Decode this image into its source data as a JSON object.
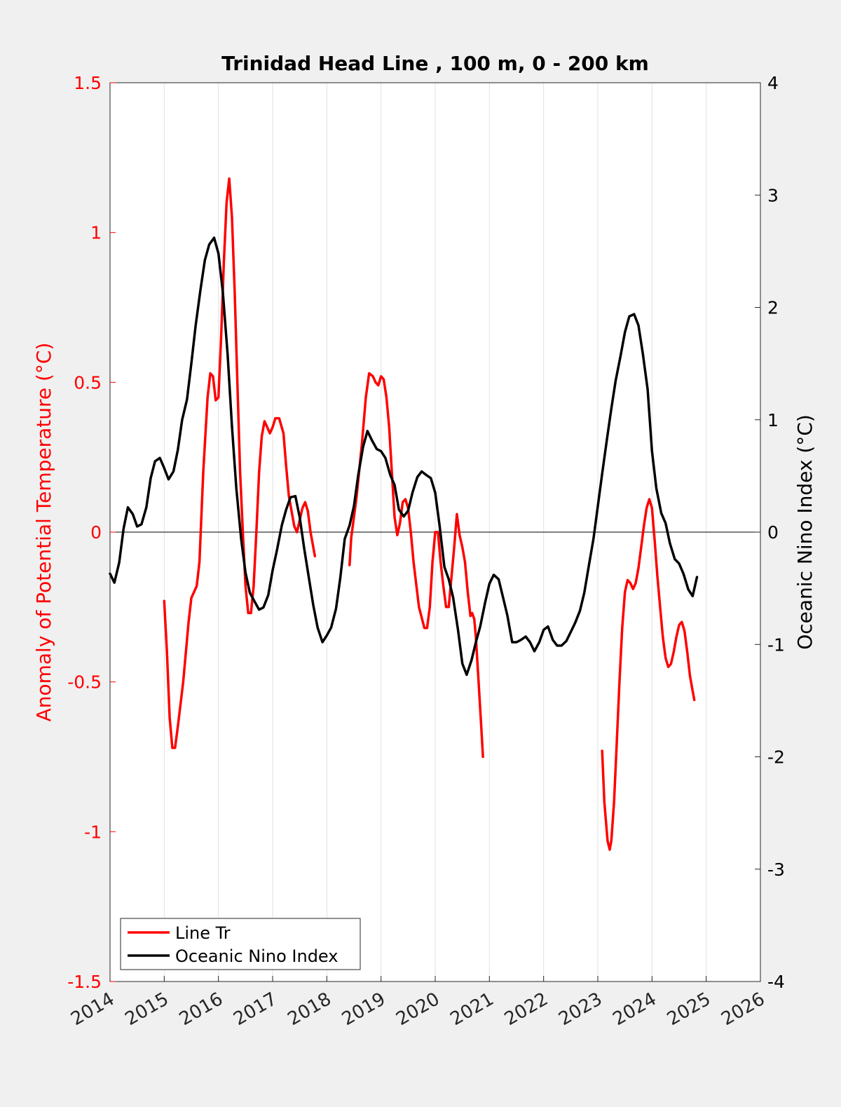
{
  "chart_data": {
    "type": "line",
    "title": "Trinidad Head Line , 100 m, 0 - 200 km",
    "xlabel": "",
    "ylabel_left": "Anomaly of Potential Temperature (°C)",
    "ylabel_right": "Oceanic Nino Index (°C)",
    "xlim": [
      2014,
      2026
    ],
    "ylim_left": [
      -1.5,
      1.5
    ],
    "ylim_right": [
      -4,
      4
    ],
    "x_ticks": [
      "2014",
      "2015",
      "2016",
      "2017",
      "2018",
      "2019",
      "2020",
      "2021",
      "2022",
      "2023",
      "2024",
      "2025",
      "2026"
    ],
    "y_left_ticks": [
      "-1.5",
      "-1",
      "-0.5",
      "0",
      "0.5",
      "1",
      "1.5"
    ],
    "y_right_ticks": [
      "-4",
      "-3",
      "-2",
      "-1",
      "0",
      "1",
      "2",
      "3",
      "4"
    ],
    "grid": "vertical",
    "legend_position": "bottom-left",
    "colors": {
      "line_tr": "#ff0000",
      "oni": "#000000",
      "left_axis": "#ff0000",
      "right_axis": "#000000"
    },
    "series": [
      {
        "name": "Line Tr",
        "axis": "left",
        "color": "#ff0000",
        "segments": [
          [
            [
              2015.0,
              -0.23
            ],
            [
              2015.05,
              -0.4
            ],
            [
              2015.1,
              -0.62
            ],
            [
              2015.15,
              -0.72
            ],
            [
              2015.2,
              -0.72
            ],
            [
              2015.25,
              -0.65
            ],
            [
              2015.35,
              -0.5
            ],
            [
              2015.45,
              -0.3
            ],
            [
              2015.5,
              -0.22
            ],
            [
              2015.6,
              -0.18
            ],
            [
              2015.65,
              -0.1
            ],
            [
              2015.72,
              0.2
            ],
            [
              2015.8,
              0.45
            ],
            [
              2015.85,
              0.53
            ],
            [
              2015.9,
              0.52
            ],
            [
              2015.95,
              0.44
            ],
            [
              2016.0,
              0.45
            ],
            [
              2016.05,
              0.65
            ],
            [
              2016.1,
              0.9
            ],
            [
              2016.15,
              1.1
            ],
            [
              2016.2,
              1.18
            ],
            [
              2016.25,
              1.05
            ],
            [
              2016.3,
              0.8
            ],
            [
              2016.35,
              0.5
            ],
            [
              2016.4,
              0.2
            ],
            [
              2016.45,
              0.0
            ],
            [
              2016.5,
              -0.18
            ],
            [
              2016.55,
              -0.27
            ],
            [
              2016.6,
              -0.27
            ],
            [
              2016.65,
              -0.18
            ],
            [
              2016.7,
              0.0
            ],
            [
              2016.75,
              0.2
            ],
            [
              2016.8,
              0.32
            ],
            [
              2016.85,
              0.37
            ],
            [
              2016.9,
              0.35
            ],
            [
              2016.95,
              0.33
            ],
            [
              2017.0,
              0.35
            ],
            [
              2017.05,
              0.38
            ],
            [
              2017.12,
              0.38
            ],
            [
              2017.2,
              0.33
            ],
            [
              2017.25,
              0.22
            ],
            [
              2017.3,
              0.12
            ],
            [
              2017.4,
              0.02
            ],
            [
              2017.45,
              0.0
            ],
            [
              2017.55,
              0.08
            ],
            [
              2017.6,
              0.1
            ],
            [
              2017.65,
              0.07
            ],
            [
              2017.7,
              0.0
            ],
            [
              2017.78,
              -0.08
            ]
          ],
          [
            [
              2018.42,
              -0.11
            ],
            [
              2018.45,
              -0.02
            ],
            [
              2018.55,
              0.12
            ],
            [
              2018.65,
              0.3
            ],
            [
              2018.72,
              0.45
            ],
            [
              2018.78,
              0.53
            ],
            [
              2018.85,
              0.52
            ],
            [
              2018.9,
              0.5
            ],
            [
              2018.95,
              0.49
            ],
            [
              2019.0,
              0.52
            ],
            [
              2019.05,
              0.51
            ],
            [
              2019.1,
              0.45
            ],
            [
              2019.15,
              0.35
            ],
            [
              2019.2,
              0.2
            ],
            [
              2019.25,
              0.05
            ],
            [
              2019.3,
              -0.01
            ],
            [
              2019.35,
              0.03
            ],
            [
              2019.4,
              0.1
            ],
            [
              2019.45,
              0.11
            ],
            [
              2019.5,
              0.08
            ],
            [
              2019.55,
              0.0
            ],
            [
              2019.6,
              -0.1
            ],
            [
              2019.7,
              -0.25
            ],
            [
              2019.8,
              -0.32
            ],
            [
              2019.85,
              -0.32
            ],
            [
              2019.9,
              -0.25
            ],
            [
              2019.95,
              -0.1
            ],
            [
              2020.0,
              0.0
            ],
            [
              2020.05,
              0.0
            ],
            [
              2020.1,
              -0.1
            ],
            [
              2020.15,
              -0.18
            ],
            [
              2020.2,
              -0.25
            ],
            [
              2020.25,
              -0.25
            ],
            [
              2020.3,
              -0.15
            ],
            [
              2020.35,
              -0.05
            ],
            [
              2020.4,
              0.06
            ],
            [
              2020.45,
              -0.01
            ],
            [
              2020.5,
              -0.05
            ],
            [
              2020.55,
              -0.1
            ],
            [
              2020.6,
              -0.2
            ],
            [
              2020.65,
              -0.28
            ],
            [
              2020.68,
              -0.27
            ],
            [
              2020.72,
              -0.29
            ],
            [
              2020.75,
              -0.35
            ],
            [
              2020.8,
              -0.5
            ],
            [
              2020.85,
              -0.65
            ],
            [
              2020.88,
              -0.75
            ]
          ],
          [
            [
              2023.08,
              -0.73
            ],
            [
              2023.12,
              -0.9
            ],
            [
              2023.18,
              -1.03
            ],
            [
              2023.22,
              -1.06
            ],
            [
              2023.25,
              -1.03
            ],
            [
              2023.3,
              -0.9
            ],
            [
              2023.35,
              -0.7
            ],
            [
              2023.4,
              -0.5
            ],
            [
              2023.45,
              -0.32
            ],
            [
              2023.5,
              -0.2
            ],
            [
              2023.55,
              -0.16
            ],
            [
              2023.6,
              -0.17
            ],
            [
              2023.65,
              -0.19
            ],
            [
              2023.7,
              -0.17
            ],
            [
              2023.75,
              -0.12
            ],
            [
              2023.8,
              -0.05
            ],
            [
              2023.85,
              0.02
            ],
            [
              2023.9,
              0.08
            ],
            [
              2023.95,
              0.11
            ],
            [
              2024.0,
              0.08
            ],
            [
              2024.05,
              -0.03
            ],
            [
              2024.1,
              -0.15
            ],
            [
              2024.15,
              -0.25
            ],
            [
              2024.2,
              -0.35
            ],
            [
              2024.25,
              -0.42
            ],
            [
              2024.3,
              -0.45
            ],
            [
              2024.35,
              -0.44
            ],
            [
              2024.4,
              -0.4
            ],
            [
              2024.45,
              -0.35
            ],
            [
              2024.5,
              -0.31
            ],
            [
              2024.55,
              -0.3
            ],
            [
              2024.6,
              -0.33
            ],
            [
              2024.65,
              -0.4
            ],
            [
              2024.7,
              -0.48
            ],
            [
              2024.75,
              -0.53
            ],
            [
              2024.78,
              -0.56
            ]
          ]
        ]
      },
      {
        "name": "Oceanic Nino Index",
        "axis": "right",
        "color": "#000000",
        "points": [
          [
            2014.0,
            -0.37
          ],
          [
            2014.08,
            -0.45
          ],
          [
            2014.17,
            -0.27
          ],
          [
            2014.25,
            0.03
          ],
          [
            2014.33,
            0.22
          ],
          [
            2014.42,
            0.16
          ],
          [
            2014.5,
            0.05
          ],
          [
            2014.58,
            0.07
          ],
          [
            2014.67,
            0.22
          ],
          [
            2014.75,
            0.48
          ],
          [
            2014.83,
            0.63
          ],
          [
            2014.92,
            0.66
          ],
          [
            2015.0,
            0.57
          ],
          [
            2015.08,
            0.47
          ],
          [
            2015.17,
            0.54
          ],
          [
            2015.25,
            0.73
          ],
          [
            2015.33,
            1.0
          ],
          [
            2015.42,
            1.18
          ],
          [
            2015.5,
            1.5
          ],
          [
            2015.58,
            1.84
          ],
          [
            2015.67,
            2.16
          ],
          [
            2015.75,
            2.42
          ],
          [
            2015.83,
            2.56
          ],
          [
            2015.92,
            2.62
          ],
          [
            2016.0,
            2.48
          ],
          [
            2016.08,
            2.14
          ],
          [
            2016.17,
            1.58
          ],
          [
            2016.25,
            0.94
          ],
          [
            2016.33,
            0.39
          ],
          [
            2016.42,
            -0.06
          ],
          [
            2016.5,
            -0.36
          ],
          [
            2016.58,
            -0.54
          ],
          [
            2016.67,
            -0.62
          ],
          [
            2016.75,
            -0.69
          ],
          [
            2016.83,
            -0.67
          ],
          [
            2016.92,
            -0.56
          ],
          [
            2017.0,
            -0.34
          ],
          [
            2017.08,
            -0.16
          ],
          [
            2017.17,
            0.06
          ],
          [
            2017.25,
            0.2
          ],
          [
            2017.33,
            0.31
          ],
          [
            2017.42,
            0.32
          ],
          [
            2017.5,
            0.13
          ],
          [
            2017.58,
            -0.14
          ],
          [
            2017.67,
            -0.41
          ],
          [
            2017.75,
            -0.65
          ],
          [
            2017.83,
            -0.85
          ],
          [
            2017.92,
            -0.98
          ],
          [
            2018.0,
            -0.92
          ],
          [
            2018.08,
            -0.85
          ],
          [
            2018.17,
            -0.68
          ],
          [
            2018.25,
            -0.4
          ],
          [
            2018.33,
            -0.06
          ],
          [
            2018.42,
            0.06
          ],
          [
            2018.5,
            0.23
          ],
          [
            2018.58,
            0.51
          ],
          [
            2018.67,
            0.76
          ],
          [
            2018.75,
            0.9
          ],
          [
            2018.83,
            0.82
          ],
          [
            2018.92,
            0.74
          ],
          [
            2019.0,
            0.72
          ],
          [
            2019.08,
            0.66
          ],
          [
            2019.17,
            0.51
          ],
          [
            2019.25,
            0.42
          ],
          [
            2019.33,
            0.2
          ],
          [
            2019.42,
            0.14
          ],
          [
            2019.5,
            0.19
          ],
          [
            2019.58,
            0.35
          ],
          [
            2019.67,
            0.49
          ],
          [
            2019.75,
            0.54
          ],
          [
            2019.83,
            0.51
          ],
          [
            2019.92,
            0.48
          ],
          [
            2020.0,
            0.35
          ],
          [
            2020.08,
            0.06
          ],
          [
            2020.17,
            -0.31
          ],
          [
            2020.25,
            -0.42
          ],
          [
            2020.33,
            -0.58
          ],
          [
            2020.42,
            -0.87
          ],
          [
            2020.5,
            -1.17
          ],
          [
            2020.58,
            -1.27
          ],
          [
            2020.67,
            -1.14
          ],
          [
            2020.75,
            -0.98
          ],
          [
            2020.83,
            -0.84
          ],
          [
            2020.92,
            -0.63
          ],
          [
            2021.0,
            -0.46
          ],
          [
            2021.08,
            -0.38
          ],
          [
            2021.17,
            -0.42
          ],
          [
            2021.25,
            -0.58
          ],
          [
            2021.33,
            -0.74
          ],
          [
            2021.42,
            -0.98
          ],
          [
            2021.5,
            -0.98
          ],
          [
            2021.58,
            -0.96
          ],
          [
            2021.67,
            -0.93
          ],
          [
            2021.75,
            -0.98
          ],
          [
            2021.83,
            -1.06
          ],
          [
            2021.92,
            -0.98
          ],
          [
            2022.0,
            -0.87
          ],
          [
            2022.08,
            -0.84
          ],
          [
            2022.17,
            -0.96
          ],
          [
            2022.25,
            -1.01
          ],
          [
            2022.33,
            -1.01
          ],
          [
            2022.42,
            -0.97
          ],
          [
            2022.5,
            -0.89
          ],
          [
            2022.58,
            -0.81
          ],
          [
            2022.67,
            -0.7
          ],
          [
            2022.75,
            -0.54
          ],
          [
            2022.83,
            -0.31
          ],
          [
            2022.92,
            -0.06
          ],
          [
            2023.0,
            0.23
          ],
          [
            2023.08,
            0.52
          ],
          [
            2023.17,
            0.83
          ],
          [
            2023.25,
            1.1
          ],
          [
            2023.33,
            1.35
          ],
          [
            2023.42,
            1.57
          ],
          [
            2023.5,
            1.78
          ],
          [
            2023.58,
            1.92
          ],
          [
            2023.67,
            1.94
          ],
          [
            2023.75,
            1.84
          ],
          [
            2023.83,
            1.59
          ],
          [
            2023.92,
            1.27
          ],
          [
            2024.0,
            0.72
          ],
          [
            2024.08,
            0.39
          ],
          [
            2024.17,
            0.17
          ],
          [
            2024.25,
            0.08
          ],
          [
            2024.33,
            -0.1
          ],
          [
            2024.42,
            -0.24
          ],
          [
            2024.5,
            -0.28
          ],
          [
            2024.58,
            -0.37
          ],
          [
            2024.67,
            -0.51
          ],
          [
            2024.75,
            -0.57
          ],
          [
            2024.83,
            -0.4
          ]
        ]
      }
    ]
  }
}
